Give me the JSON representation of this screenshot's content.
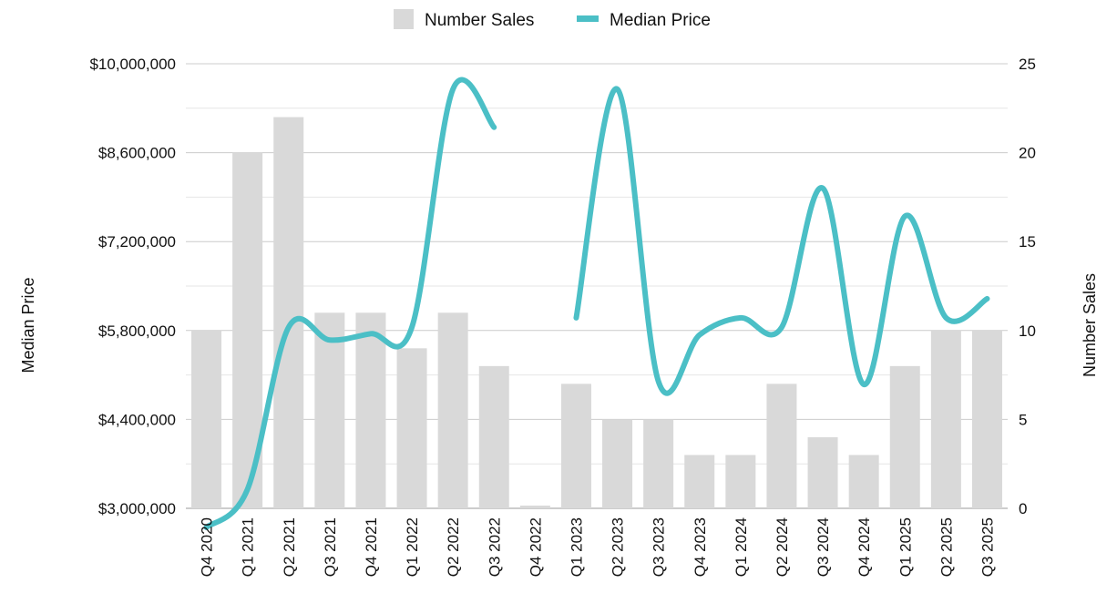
{
  "chart_data": {
    "type": "bar",
    "title": "",
    "categories": [
      "Q4 2020",
      "Q1 2021",
      "Q2 2021",
      "Q3 2021",
      "Q4 2021",
      "Q1 2022",
      "Q2 2022",
      "Q3 2022",
      "Q4 2022",
      "Q1 2023",
      "Q2 2023",
      "Q3 2023",
      "Q4 2023",
      "Q1 2024",
      "Q2 2024",
      "Q3 2024",
      "Q4 2024",
      "Q1 2025",
      "Q2 2025",
      "Q3 2025"
    ],
    "series": [
      {
        "name": "Number Sales",
        "type": "bar",
        "axis": "right",
        "color": "#d9d9d9",
        "values": [
          10,
          20,
          22,
          11,
          11,
          9,
          11,
          8,
          0,
          7,
          5,
          5,
          3,
          3,
          7,
          4,
          3,
          8,
          10,
          10
        ]
      },
      {
        "name": "Median Price",
        "type": "line",
        "smooth": true,
        "axis": "left",
        "color": "#4bbfc6",
        "values": [
          2700000,
          3300000,
          5850000,
          5650000,
          5750000,
          5850000,
          9600000,
          9000000,
          null,
          6000000,
          9600000,
          5000000,
          5730000,
          6000000,
          5850000,
          8040000,
          4950000,
          7600000,
          6000000,
          6300000
        ]
      }
    ],
    "y_left": {
      "label": "Median Price",
      "ylim": [
        3000000,
        10000000
      ],
      "ticks": [
        "$3,000,000",
        "$4,400,000",
        "$5,800,000",
        "$7,200,000",
        "$8,600,000",
        "$10,000,000"
      ]
    },
    "y_right": {
      "label": "Number Sales",
      "ylim": [
        0,
        25
      ],
      "ticks": [
        "0",
        "5",
        "10",
        "15",
        "20",
        "25"
      ]
    },
    "legend": {
      "placement": "top-center",
      "items": [
        "Number Sales",
        "Median Price"
      ]
    },
    "grid": true,
    "gridlines_minor": true
  }
}
